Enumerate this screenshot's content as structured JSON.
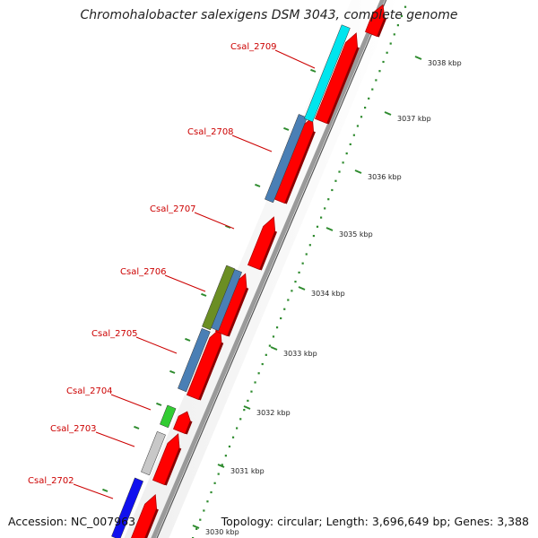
{
  "title": "Chromohalobacter salexigens DSM 3043, complete genome",
  "footer": {
    "accession": "Accession: NC_007963",
    "topology": "Topology: circular; Length: 3,696,649 bp; Genes: 3,388"
  },
  "scale": {
    "unit": "kbp",
    "ticks": [
      "3030 kbp",
      "3031 kbp",
      "3032 kbp",
      "3033 kbp",
      "3034 kbp",
      "3035 kbp",
      "3036 kbp",
      "3037 kbp",
      "3038 kbp"
    ]
  },
  "genes": [
    {
      "label": "Csal_2702",
      "color": "#1010ee"
    },
    {
      "label": "Csal_2703",
      "color": "#c8c8c8"
    },
    {
      "label": "Csal_2704",
      "color": "#33cc33"
    },
    {
      "label": "Csal_2705",
      "color": "#4a7fb5"
    },
    {
      "label": "Csal_2706",
      "color": "#6b8e23"
    },
    {
      "label": "Csal_2707",
      "color": "#ff0000"
    },
    {
      "label": "Csal_2708",
      "color": "#4a7fb5"
    },
    {
      "label": "Csal_2709",
      "color": "#00e5ee"
    }
  ],
  "colors": {
    "label": "#cc0000",
    "cds_strand": "#ff0000",
    "backbone": "#9a9a9a",
    "scale_dots": "#2e8b2e"
  }
}
